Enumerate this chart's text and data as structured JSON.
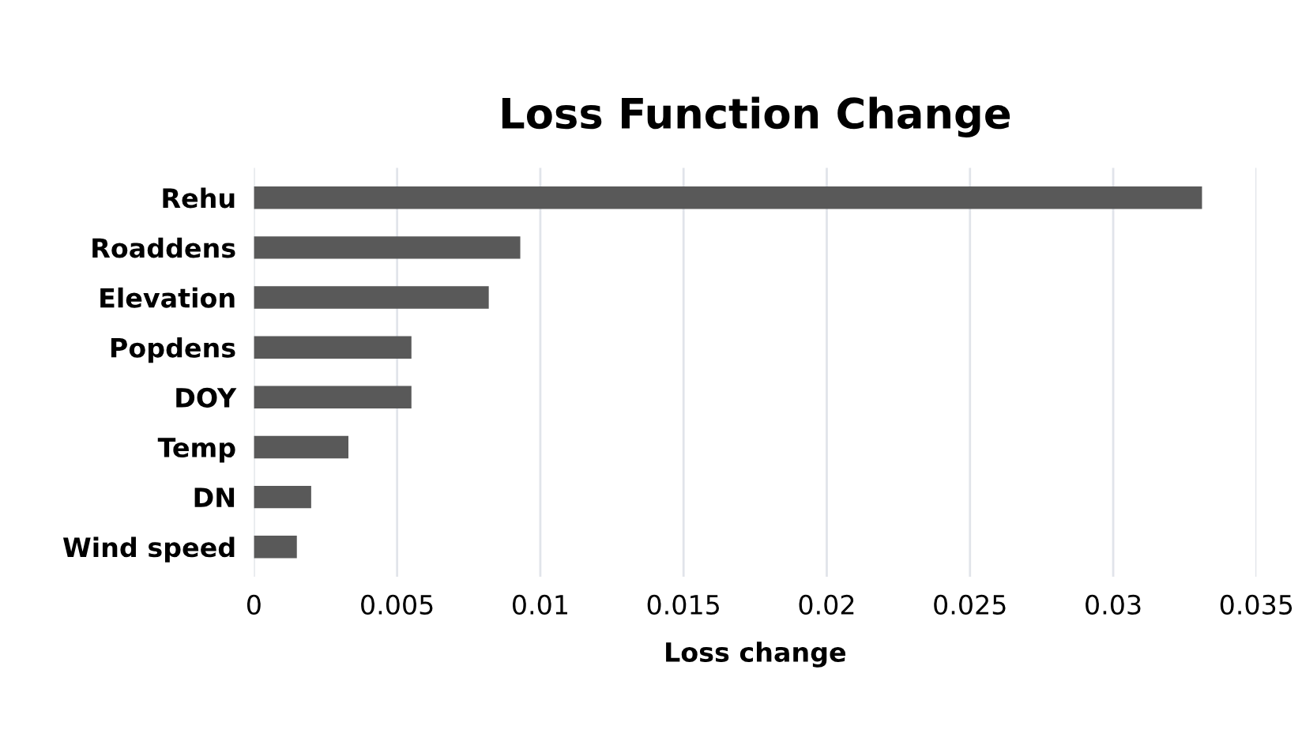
{
  "chart_data": {
    "type": "bar",
    "orientation": "horizontal",
    "title": "Loss Function Change",
    "xlabel": "Loss change",
    "categories": [
      "Rehu",
      "Roaddens",
      "Elevation",
      "Popdens",
      "DOY",
      "Temp",
      "DN",
      "Wind speed"
    ],
    "values": [
      0.0331,
      0.0093,
      0.0082,
      0.0055,
      0.0055,
      0.0033,
      0.002,
      0.0015
    ],
    "color": "#595959",
    "xlim": [
      0,
      0.035
    ],
    "xticks": [
      0,
      0.005,
      0.01,
      0.015,
      0.02,
      0.025,
      0.03,
      0.035
    ],
    "grid": "x"
  }
}
